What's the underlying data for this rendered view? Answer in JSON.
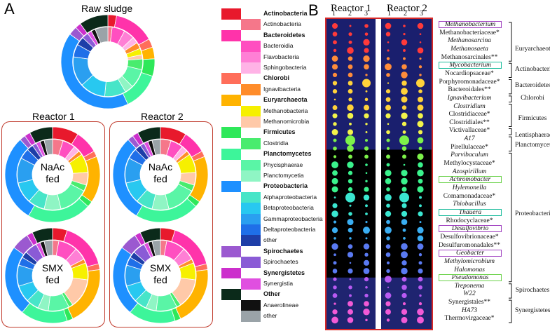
{
  "panel_a_letter": "A",
  "panel_b_letter": "B",
  "raw_sludge_title": "Raw sludge",
  "reactor1_title": "Reactor 1",
  "reactor2_title": "Reactor 2",
  "naac_label": [
    "NaAc",
    "fed"
  ],
  "smx_label": [
    "SMX",
    "fed"
  ],
  "legend": [
    {
      "label": "Actinobacteria",
      "bold": true,
      "color": "#e8192c",
      "col": 0
    },
    {
      "label": "Actinobacteria",
      "bold": false,
      "color": "#f5778a",
      "col": 1
    },
    {
      "label": "Bacteroidetes",
      "bold": true,
      "color": "#ff33aa",
      "col": 0
    },
    {
      "label": "Bacteroidia",
      "bold": false,
      "color": "#ff4fc0",
      "col": 1
    },
    {
      "label": "Flavobacteria",
      "bold": false,
      "color": "#ff7fd5",
      "col": 1
    },
    {
      "label": "Sphingobacteria",
      "bold": false,
      "color": "#ffb3e6",
      "col": 1
    },
    {
      "label": "Chlorobi",
      "bold": true,
      "color": "#ff6e5a",
      "col": 0
    },
    {
      "label": "Ignavibacteria",
      "bold": false,
      "color": "#ff8c2a",
      "col": 1
    },
    {
      "label": "Euryarchaeota",
      "bold": true,
      "color": "#ffb300",
      "col": 0
    },
    {
      "label": "Methanobacteria",
      "bold": false,
      "color": "#f6f000",
      "col": 1
    },
    {
      "label": "Methanomicrobia",
      "bold": false,
      "color": "#ffc9a8",
      "col": 1
    },
    {
      "label": "Firmicutes",
      "bold": true,
      "color": "#2ee85a",
      "col": 0
    },
    {
      "label": "Clostridia",
      "bold": false,
      "color": "#49ec6e",
      "col": 1
    },
    {
      "label": "Planctomycetes",
      "bold": true,
      "color": "#3df59a",
      "col": 0
    },
    {
      "label": "Phycisphaerae",
      "bold": false,
      "color": "#5af5a6",
      "col": 1
    },
    {
      "label": "Planctomycetia",
      "bold": false,
      "color": "#8ff5c4",
      "col": 1
    },
    {
      "label": "Proteobacteria",
      "bold": true,
      "color": "#1e90ff",
      "col": 0
    },
    {
      "label": "Alphaproteobacteria",
      "bold": false,
      "color": "#47e5c8",
      "col": 1
    },
    {
      "label": "Betaproteobacteria",
      "bold": false,
      "color": "#28c8f0",
      "col": 1
    },
    {
      "label": "Gammaproteobacteria",
      "bold": false,
      "color": "#2a9ff0",
      "col": 1
    },
    {
      "label": "Deltaproteobacteria",
      "bold": false,
      "color": "#1f6fe8",
      "col": 1
    },
    {
      "label": "other",
      "bold": false,
      "color": "#1e3ea8",
      "col": 1
    },
    {
      "label": "Spirochaetes",
      "bold": true,
      "color": "#9b59d0",
      "col": 0
    },
    {
      "label": "Spirochaetes",
      "bold": false,
      "color": "#8a5bd6",
      "col": 1
    },
    {
      "label": "Synergistetes",
      "bold": true,
      "color": "#cc2fcc",
      "col": 0
    },
    {
      "label": "Synergistia",
      "bold": false,
      "color": "#e04fe0",
      "col": 1
    },
    {
      "label": "Other",
      "bold": true,
      "color": "#0b2a1a",
      "col": 0
    },
    {
      "label": "Anaerolineae",
      "bold": false,
      "color": "#111111",
      "col": 1
    },
    {
      "label": "other",
      "bold": false,
      "color": "#9aa3a8",
      "col": 1
    }
  ],
  "heatmap": {
    "reactor1_title": "Reactor 1",
    "reactor2_title": "Reactor 2",
    "col_numbers": [
      "1",
      "2",
      "3"
    ]
  },
  "taxa": [
    {
      "label": "Methanobacterium",
      "italic": true,
      "box": "#a040c0"
    },
    {
      "label": "Methanobacteriaceae*",
      "italic": false
    },
    {
      "label": "Methanosarcina",
      "italic": true
    },
    {
      "label": "Methanosaeta",
      "italic": true
    },
    {
      "label": "Methanosarcinales**",
      "italic": false
    },
    {
      "label": "Mycobacterium",
      "italic": true,
      "box": "#1abc9c"
    },
    {
      "label": "Nocardiopsaceae*",
      "italic": false
    },
    {
      "label": "Porphyromonadaceae*",
      "italic": false
    },
    {
      "label": "Bacteroidales**",
      "italic": false
    },
    {
      "label": "Ignavibacterium",
      "italic": true
    },
    {
      "label": "Clostridium",
      "italic": true
    },
    {
      "label": "Clostridiaceae*",
      "italic": false
    },
    {
      "label": "Clostridiales**",
      "italic": false
    },
    {
      "label": "Victivallaceae*",
      "italic": false
    },
    {
      "label": "A17",
      "italic": true
    },
    {
      "label": "Pirellulaceae*",
      "italic": false
    },
    {
      "label": "Parvibaculum",
      "italic": true
    },
    {
      "label": "Methylocystaceae*",
      "italic": false
    },
    {
      "label": "Azospirillum",
      "italic": true
    },
    {
      "label": "Achromobacter",
      "italic": true,
      "box": "#6bd24a"
    },
    {
      "label": "Hylemonella",
      "italic": true
    },
    {
      "label": "Comamonadaceae*",
      "italic": false
    },
    {
      "label": "Thiobacillus",
      "italic": true
    },
    {
      "label": "Thauera",
      "italic": true,
      "box": "#1abc9c"
    },
    {
      "label": "Rhodocyclaceae*",
      "italic": false
    },
    {
      "label": "Desulfovibrio",
      "italic": true,
      "box": "#a040c0"
    },
    {
      "label": "Desulfovibrionaceae*",
      "italic": false
    },
    {
      "label": "Desulfuromonadales**",
      "italic": false
    },
    {
      "label": "Geobacter",
      "italic": true,
      "box": "#a040c0"
    },
    {
      "label": "Methylomicrobium",
      "italic": true
    },
    {
      "label": "Halomonas",
      "italic": true
    },
    {
      "label": "Pseudomonas",
      "italic": true,
      "box": "#6bd24a"
    },
    {
      "label": "Treponema",
      "italic": true
    },
    {
      "label": "W22",
      "italic": true
    },
    {
      "label": "Synergistales**",
      "italic": false
    },
    {
      "label": "HA73",
      "italic": true
    },
    {
      "label": "Thermovirgaceae*",
      "italic": false
    }
  ],
  "phyla": [
    {
      "label": "Euryarchaeota",
      "row": 3
    },
    {
      "label": "Actinobacteria",
      "row": 5.5
    },
    {
      "label": "Bacteroidetes",
      "row": 7.5
    },
    {
      "label": "Chlorobi",
      "row": 9
    },
    {
      "label": "Firmicutes",
      "row": 11.5
    },
    {
      "label": "Lentisphaerae",
      "row": 13.6
    },
    {
      "label": "Planctomycetes",
      "row": 14.8
    },
    {
      "label": "Proteobacteria",
      "row": 23.2
    },
    {
      "label": "Spirochaetes",
      "row": 32.5
    },
    {
      "label": "Synergistetes",
      "row": 35
    }
  ],
  "phylum_brackets": [
    [
      0,
      4
    ],
    [
      5,
      6
    ],
    [
      7,
      8
    ],
    [
      9,
      9
    ],
    [
      10,
      12
    ],
    [
      13,
      13
    ],
    [
      14,
      15
    ],
    [
      16,
      31
    ],
    [
      32,
      33
    ],
    [
      34,
      36
    ]
  ]
}
